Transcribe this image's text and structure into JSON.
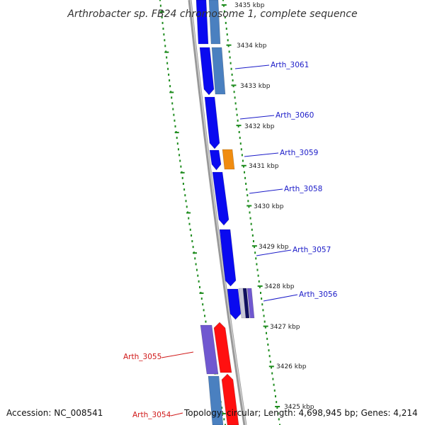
{
  "title": "Arthrobacter sp. FB24 chromosome 1, complete sequence",
  "footer": {
    "accession": "Accession: NC_008541",
    "topology": "Topology: circular; Length: 4,698,945 bp; Genes: 4,214"
  },
  "colors": {
    "forward": "#0a0af0",
    "forward_light": "#4a80c0",
    "reverse": "#ff1010",
    "reverse_light": "#7058d0",
    "orange": "#f08c10",
    "navy": "#101060",
    "backbone": "#999999",
    "tick": "#1e8c1e",
    "label_blue": "#1a1ac8",
    "label_red": "#d01818"
  },
  "kbp_labels": [
    "3434 kbp",
    "3433 kbp",
    "3432 kbp",
    "3431 kbp",
    "3430 kbp",
    "3429 kbp",
    "3428 kbp",
    "3427 kbp",
    "3426 kbp"
  ],
  "kbp_partial": [
    "3435 kbp",
    "3425 kbp"
  ],
  "genes": [
    {
      "name": "Arth_3061",
      "strand": "forward"
    },
    {
      "name": "Arth_3060",
      "strand": "forward"
    },
    {
      "name": "Arth_3059",
      "strand": "forward"
    },
    {
      "name": "Arth_3058",
      "strand": "forward"
    },
    {
      "name": "Arth_3057",
      "strand": "forward"
    },
    {
      "name": "Arth_3056",
      "strand": "forward"
    },
    {
      "name": "Arth_3055",
      "strand": "reverse"
    },
    {
      "name": "Arth_3054",
      "strand": "reverse"
    }
  ]
}
